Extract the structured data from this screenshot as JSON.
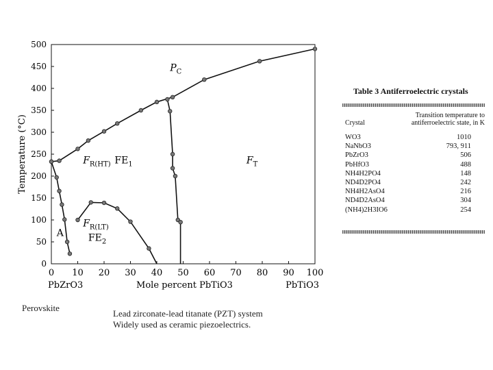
{
  "chart_data": {
    "type": "line",
    "title": "",
    "xlabel": "Mole percent PbTiO3",
    "ylabel": "Temperature (°C)",
    "xlim": [
      0,
      100
    ],
    "ylim": [
      0,
      500
    ],
    "x_ticks": [
      0,
      10,
      20,
      30,
      40,
      50,
      60,
      70,
      80,
      90,
      100
    ],
    "y_ticks": [
      0,
      50,
      100,
      150,
      200,
      250,
      300,
      350,
      400,
      450,
      500
    ],
    "end_labels": {
      "left": "PbZrO3",
      "right": "PbTiO3"
    },
    "series": [
      {
        "values": [
          [
            0,
            233
          ],
          [
            3,
            235
          ],
          [
            10,
            262
          ],
          [
            14,
            281
          ],
          [
            20,
            302
          ],
          [
            25,
            320
          ],
          [
            34,
            350
          ],
          [
            40,
            369
          ],
          [
            46,
            380
          ],
          [
            58,
            420
          ],
          [
            79,
            462
          ],
          [
            100,
            490
          ]
        ]
      },
      {
        "values": [
          [
            0,
            233
          ],
          [
            2,
            197
          ],
          [
            3,
            166
          ],
          [
            4,
            135
          ],
          [
            5,
            101
          ],
          [
            6,
            50
          ],
          [
            7,
            23
          ]
        ]
      },
      {
        "values": [
          [
            10,
            100
          ],
          [
            15,
            140
          ],
          [
            20,
            139
          ],
          [
            25,
            126
          ],
          [
            30,
            96
          ],
          [
            37,
            35
          ],
          [
            40,
            0
          ]
        ]
      },
      {
        "values": [
          [
            44,
            375
          ],
          [
            45,
            348
          ],
          [
            46,
            250
          ],
          [
            46,
            218
          ],
          [
            47,
            200
          ],
          [
            48,
            100
          ],
          [
            49,
            95
          ],
          [
            49,
            0
          ]
        ]
      }
    ],
    "annotations": [
      {
        "text": "P",
        "sub": "C",
        "x": 45,
        "y": 440
      },
      {
        "text": "F",
        "sub": "R(HT)",
        "x": 12,
        "y": 229
      },
      {
        "text": "FE",
        "sub": "1",
        "x": 24,
        "y": 229
      },
      {
        "text": "F",
        "sub": "T",
        "x": 74,
        "y": 229
      },
      {
        "text": "F",
        "sub": "R(LT)",
        "x": 12,
        "y": 85
      },
      {
        "text": "FE",
        "sub": "2",
        "x": 14,
        "y": 52
      },
      {
        "text": "A",
        "sub": "",
        "x": 2,
        "y": 63
      }
    ]
  },
  "captions": {
    "left": "Perovskite",
    "line1": "Lead zirconate-lead titanate (PZT) system",
    "line2": "Widely used as ceramic piezoelectrics."
  },
  "table": {
    "title": "Table 3 Antiferroelectric crystals",
    "col_crystal": "Crystal",
    "col_temp": "Transition temperature to antiferroelectric state, in K",
    "rows": [
      {
        "crystal": "WO3",
        "temp": "1010"
      },
      {
        "crystal": "NaNbO3",
        "temp": "793, 911"
      },
      {
        "crystal": "PbZrO3",
        "temp": "506"
      },
      {
        "crystal": "PbHfO3",
        "temp": "488"
      },
      {
        "crystal": "NH4H2PO4",
        "temp": "148"
      },
      {
        "crystal": "ND4D2PO4",
        "temp": "242"
      },
      {
        "crystal": "NH4H2AsO4",
        "temp": "216"
      },
      {
        "crystal": "ND4D2AsO4",
        "temp": "304"
      },
      {
        "crystal": "(NH4)2H3IO6",
        "temp": "254"
      }
    ]
  }
}
